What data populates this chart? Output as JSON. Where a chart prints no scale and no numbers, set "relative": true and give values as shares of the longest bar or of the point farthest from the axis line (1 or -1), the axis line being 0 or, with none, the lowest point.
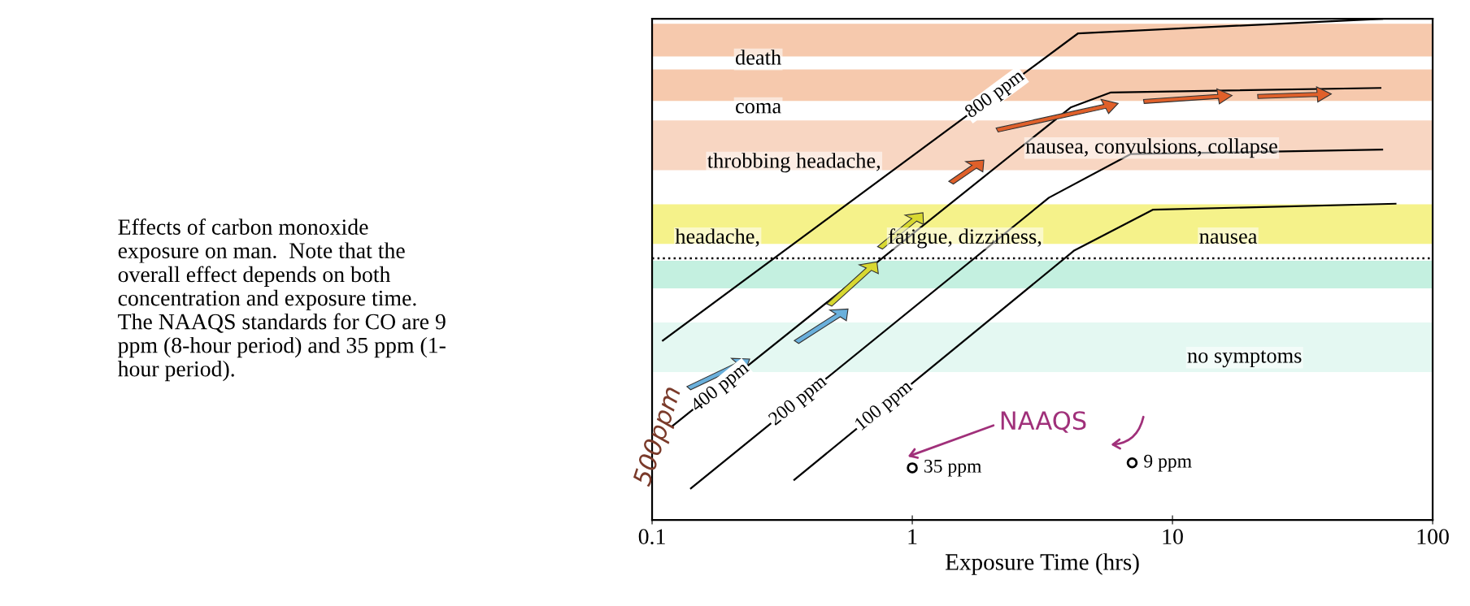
{
  "chart_data": {
    "type": "line",
    "relative": true,
    "xlabel": "Exposure Time (hrs)",
    "log": "x",
    "xlim": [
      0.1,
      100
    ],
    "xticks": [
      0.1,
      1,
      10,
      100
    ],
    "grid": false,
    "legend": false,
    "line_style": "solid",
    "series": [
      {
        "name": "800 ppm",
        "color": "#000000",
        "marker": "none",
        "x": [
          0.11,
          4.34,
          64
        ],
        "values": [
          0.358,
          0.971,
          1.0
        ]
      },
      {
        "name": "400 ppm",
        "color": "#000000",
        "marker": "none",
        "x": [
          0.12,
          4.06,
          5.8,
          63
        ],
        "values": [
          0.188,
          0.823,
          0.853,
          0.862
        ]
      },
      {
        "name": "200 ppm",
        "color": "#000000",
        "marker": "none",
        "x": [
          0.141,
          3.35,
          6.9,
          64
        ],
        "values": [
          0.063,
          0.643,
          0.73,
          0.739
        ]
      },
      {
        "name": "100 ppm",
        "color": "#000000",
        "marker": "none",
        "x": [
          0.352,
          4.2,
          8.4,
          72
        ],
        "values": [
          0.08,
          0.538,
          0.619,
          0.631
        ]
      },
      {
        "name": "35 ppm",
        "type": "scatter",
        "color": "#000000",
        "marker": "circle",
        "x": [
          1
        ],
        "values": [
          0.104
        ]
      },
      {
        "name": "9 ppm",
        "type": "scatter",
        "color": "#000000",
        "marker": "circle",
        "x": [
          7
        ],
        "values": [
          0.114
        ]
      }
    ],
    "ref_lines": [
      {
        "axis": "y",
        "value": 0.522,
        "color": "#000000",
        "line_style": "dotted"
      }
    ],
    "bands": [
      {
        "axis": "y",
        "from": 0.925,
        "to": 0.99,
        "color": "#f6c9ad"
      },
      {
        "axis": "y",
        "from": 0.836,
        "to": 0.899,
        "color": "#f6c9ad"
      },
      {
        "axis": "y",
        "from": 0.698,
        "to": 0.797,
        "color": "#f8d6c2"
      },
      {
        "axis": "y",
        "from": 0.551,
        "to": 0.63,
        "color": "#f5f28a"
      },
      {
        "axis": "y",
        "from": 0.462,
        "to": 0.517,
        "color": "#c4f0e0"
      },
      {
        "axis": "y",
        "from": 0.295,
        "to": 0.394,
        "color": "#e4f8f2"
      }
    ],
    "annotations": [
      "death",
      "coma",
      "throbbing headache,",
      "nausea, convulsions, collapse",
      "headache,",
      "fatigue, dizziness,",
      "nausea",
      "no symptoms",
      "NAAQS",
      "500ppm",
      "Effects of carbon monoxide\nexposure on man.  Note that the\noverall effect depends on both\nconcentration and exposure time.\nThe NAAQS standards for CO are 9\nppm (8-hour period) and 35 ppm (1-\nhour period)."
    ]
  }
}
